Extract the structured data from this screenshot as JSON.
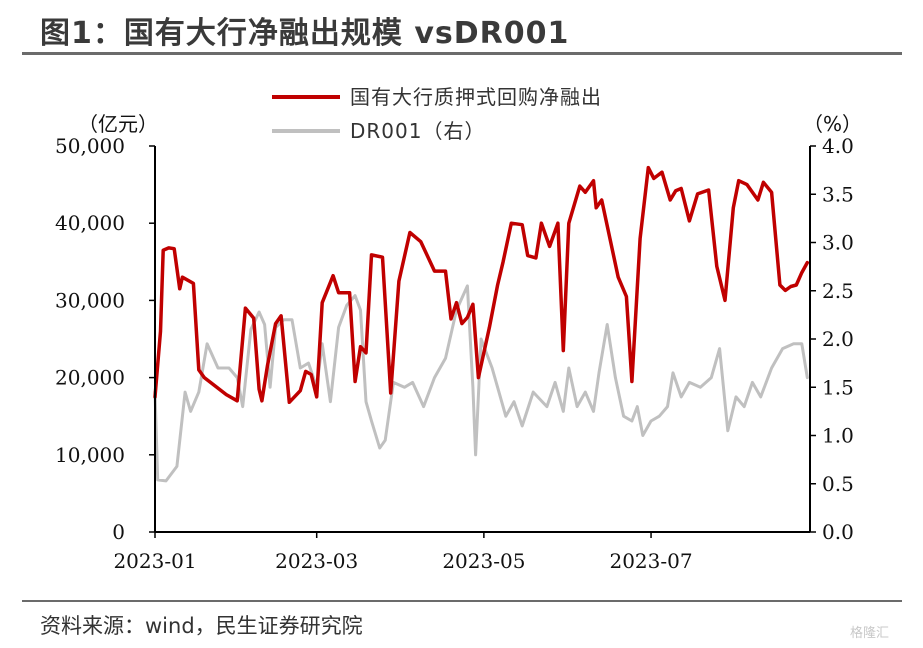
{
  "title": "图1：国有大行净融出规模 vsDR001",
  "source": "资料来源：wind，民生证券研究院",
  "watermark": "格隆汇",
  "chart_data": {
    "type": "line",
    "left_unit": "（亿元）",
    "right_unit": "（%）",
    "y_left_range": [
      0,
      50000
    ],
    "y_left_ticks": [
      0,
      10000,
      20000,
      30000,
      40000,
      50000
    ],
    "y_left_tick_labels": [
      "0",
      "10,000",
      "20,000",
      "30,000",
      "40,000",
      "50,000"
    ],
    "y_right_range": [
      0,
      4
    ],
    "y_right_ticks": [
      0,
      0.5,
      1,
      1.5,
      2,
      2.5,
      3,
      3.5,
      4
    ],
    "y_right_tick_labels": [
      "0.0",
      "0.5",
      "1.0",
      "1.5",
      "2.0",
      "2.5",
      "3.0",
      "3.5",
      "4.0"
    ],
    "x_range": [
      "2023-01-01",
      "2023-08-28"
    ],
    "x_ticks": [
      "2023-01-01",
      "2023-03-01",
      "2023-05-01",
      "2023-07-01"
    ],
    "x_tick_labels": [
      "2023-01",
      "2023-03",
      "2023-05",
      "2023-07"
    ],
    "legend_position": "top-center",
    "series": [
      {
        "name": "国有大行质押式回购净融出",
        "axis": "left",
        "color": "#c00000",
        "points": [
          [
            "2023-01-01",
            17500
          ],
          [
            "2023-01-03",
            26000
          ],
          [
            "2023-01-04",
            36500
          ],
          [
            "2023-01-06",
            36800
          ],
          [
            "2023-01-08",
            36700
          ],
          [
            "2023-01-10",
            31500
          ],
          [
            "2023-01-11",
            33000
          ],
          [
            "2023-01-15",
            32200
          ],
          [
            "2023-01-17",
            21000
          ],
          [
            "2023-01-19",
            20000
          ],
          [
            "2023-01-27",
            17800
          ],
          [
            "2023-01-31",
            17000
          ],
          [
            "2023-02-03",
            29000
          ],
          [
            "2023-02-06",
            27700
          ],
          [
            "2023-02-08",
            18500
          ],
          [
            "2023-02-09",
            17000
          ],
          [
            "2023-02-11",
            21500
          ],
          [
            "2023-02-14",
            27000
          ],
          [
            "2023-02-16",
            28000
          ],
          [
            "2023-02-19",
            16800
          ],
          [
            "2023-02-23",
            18300
          ],
          [
            "2023-02-25",
            20800
          ],
          [
            "2023-02-27",
            20400
          ],
          [
            "2023-03-01",
            17500
          ],
          [
            "2023-03-03",
            29700
          ],
          [
            "2023-03-07",
            33200
          ],
          [
            "2023-03-09",
            31000
          ],
          [
            "2023-03-13",
            31000
          ],
          [
            "2023-03-15",
            19500
          ],
          [
            "2023-03-17",
            24000
          ],
          [
            "2023-03-19",
            23200
          ],
          [
            "2023-03-21",
            35900
          ],
          [
            "2023-03-25",
            35600
          ],
          [
            "2023-03-28",
            18000
          ],
          [
            "2023-03-31",
            32500
          ],
          [
            "2023-04-04",
            38800
          ],
          [
            "2023-04-08",
            37600
          ],
          [
            "2023-04-13",
            33800
          ],
          [
            "2023-04-17",
            33800
          ],
          [
            "2023-04-19",
            27600
          ],
          [
            "2023-04-21",
            29700
          ],
          [
            "2023-04-23",
            27000
          ],
          [
            "2023-04-25",
            27800
          ],
          [
            "2023-04-27",
            29500
          ],
          [
            "2023-04-29",
            20000
          ],
          [
            "2023-05-03",
            26500
          ],
          [
            "2023-05-06",
            32000
          ],
          [
            "2023-05-08",
            35000
          ],
          [
            "2023-05-11",
            40000
          ],
          [
            "2023-05-15",
            39800
          ],
          [
            "2023-05-17",
            35800
          ],
          [
            "2023-05-20",
            35500
          ],
          [
            "2023-05-22",
            40000
          ],
          [
            "2023-05-25",
            37000
          ],
          [
            "2023-05-28",
            40000
          ],
          [
            "2023-05-30",
            23500
          ],
          [
            "2023-06-01",
            40000
          ],
          [
            "2023-06-05",
            44800
          ],
          [
            "2023-06-07",
            44000
          ],
          [
            "2023-06-10",
            45500
          ],
          [
            "2023-06-11",
            42000
          ],
          [
            "2023-06-13",
            43000
          ],
          [
            "2023-06-19",
            33000
          ],
          [
            "2023-06-22",
            30500
          ],
          [
            "2023-06-24",
            19500
          ],
          [
            "2023-06-27",
            38000
          ],
          [
            "2023-06-30",
            47200
          ],
          [
            "2023-07-02",
            45800
          ],
          [
            "2023-07-05",
            46600
          ],
          [
            "2023-07-08",
            43000
          ],
          [
            "2023-07-10",
            44200
          ],
          [
            "2023-07-12",
            44500
          ],
          [
            "2023-07-15",
            40300
          ],
          [
            "2023-07-18",
            43800
          ],
          [
            "2023-07-22",
            44300
          ],
          [
            "2023-07-25",
            34400
          ],
          [
            "2023-07-28",
            30000
          ],
          [
            "2023-07-31",
            42000
          ],
          [
            "2023-08-02",
            45500
          ],
          [
            "2023-08-05",
            45000
          ],
          [
            "2023-08-09",
            43000
          ],
          [
            "2023-08-11",
            45300
          ],
          [
            "2023-08-14",
            44000
          ],
          [
            "2023-08-17",
            32000
          ],
          [
            "2023-08-19",
            31300
          ],
          [
            "2023-08-21",
            31800
          ],
          [
            "2023-08-23",
            32000
          ],
          [
            "2023-08-25",
            33600
          ],
          [
            "2023-08-27",
            34900
          ]
        ]
      },
      {
        "name": "DR001（右）",
        "axis": "right",
        "color": "#c0c0c0",
        "points": [
          [
            "2023-01-01",
            1.45
          ],
          [
            "2023-01-02",
            0.54
          ],
          [
            "2023-01-05",
            0.53
          ],
          [
            "2023-01-09",
            0.68
          ],
          [
            "2023-01-12",
            1.45
          ],
          [
            "2023-01-14",
            1.25
          ],
          [
            "2023-01-17",
            1.45
          ],
          [
            "2023-01-20",
            1.95
          ],
          [
            "2023-01-24",
            1.7
          ],
          [
            "2023-01-28",
            1.7
          ],
          [
            "2023-01-31",
            1.6
          ],
          [
            "2023-02-02",
            1.3
          ],
          [
            "2023-02-05",
            2.1
          ],
          [
            "2023-02-08",
            2.28
          ],
          [
            "2023-02-10",
            2.15
          ],
          [
            "2023-02-12",
            1.5
          ],
          [
            "2023-02-14",
            2.12
          ],
          [
            "2023-02-17",
            2.2
          ],
          [
            "2023-02-20",
            2.2
          ],
          [
            "2023-02-23",
            1.7
          ],
          [
            "2023-02-26",
            1.75
          ],
          [
            "2023-03-01",
            1.5
          ],
          [
            "2023-03-03",
            1.95
          ],
          [
            "2023-03-06",
            1.35
          ],
          [
            "2023-03-09",
            2.12
          ],
          [
            "2023-03-12",
            2.35
          ],
          [
            "2023-03-15",
            2.45
          ],
          [
            "2023-03-17",
            2.3
          ],
          [
            "2023-03-19",
            1.35
          ],
          [
            "2023-03-21",
            1.15
          ],
          [
            "2023-03-24",
            0.87
          ],
          [
            "2023-03-26",
            0.95
          ],
          [
            "2023-03-29",
            1.55
          ],
          [
            "2023-04-02",
            1.5
          ],
          [
            "2023-04-05",
            1.55
          ],
          [
            "2023-04-09",
            1.3
          ],
          [
            "2023-04-13",
            1.6
          ],
          [
            "2023-04-17",
            1.8
          ],
          [
            "2023-04-21",
            2.3
          ],
          [
            "2023-04-25",
            2.55
          ],
          [
            "2023-04-27",
            1.5
          ],
          [
            "2023-04-28",
            0.8
          ],
          [
            "2023-04-30",
            2.0
          ],
          [
            "2023-05-04",
            1.7
          ],
          [
            "2023-05-06",
            1.5
          ],
          [
            "2023-05-09",
            1.2
          ],
          [
            "2023-05-12",
            1.35
          ],
          [
            "2023-05-15",
            1.1
          ],
          [
            "2023-05-19",
            1.45
          ],
          [
            "2023-05-24",
            1.3
          ],
          [
            "2023-05-27",
            1.55
          ],
          [
            "2023-05-30",
            1.25
          ],
          [
            "2023-06-01",
            1.7
          ],
          [
            "2023-06-04",
            1.3
          ],
          [
            "2023-06-07",
            1.45
          ],
          [
            "2023-06-10",
            1.25
          ],
          [
            "2023-06-12",
            1.65
          ],
          [
            "2023-06-15",
            2.15
          ],
          [
            "2023-06-18",
            1.6
          ],
          [
            "2023-06-21",
            1.2
          ],
          [
            "2023-06-24",
            1.15
          ],
          [
            "2023-06-26",
            1.3
          ],
          [
            "2023-06-28",
            1.0
          ],
          [
            "2023-07-01",
            1.15
          ],
          [
            "2023-07-04",
            1.2
          ],
          [
            "2023-07-07",
            1.3
          ],
          [
            "2023-07-09",
            1.65
          ],
          [
            "2023-07-12",
            1.4
          ],
          [
            "2023-07-15",
            1.55
          ],
          [
            "2023-07-19",
            1.5
          ],
          [
            "2023-07-23",
            1.6
          ],
          [
            "2023-07-26",
            1.9
          ],
          [
            "2023-07-29",
            1.05
          ],
          [
            "2023-08-01",
            1.4
          ],
          [
            "2023-08-04",
            1.3
          ],
          [
            "2023-08-07",
            1.55
          ],
          [
            "2023-08-10",
            1.4
          ],
          [
            "2023-08-14",
            1.7
          ],
          [
            "2023-08-18",
            1.9
          ],
          [
            "2023-08-22",
            1.95
          ],
          [
            "2023-08-25",
            1.95
          ],
          [
            "2023-08-27",
            1.6
          ]
        ]
      }
    ]
  }
}
